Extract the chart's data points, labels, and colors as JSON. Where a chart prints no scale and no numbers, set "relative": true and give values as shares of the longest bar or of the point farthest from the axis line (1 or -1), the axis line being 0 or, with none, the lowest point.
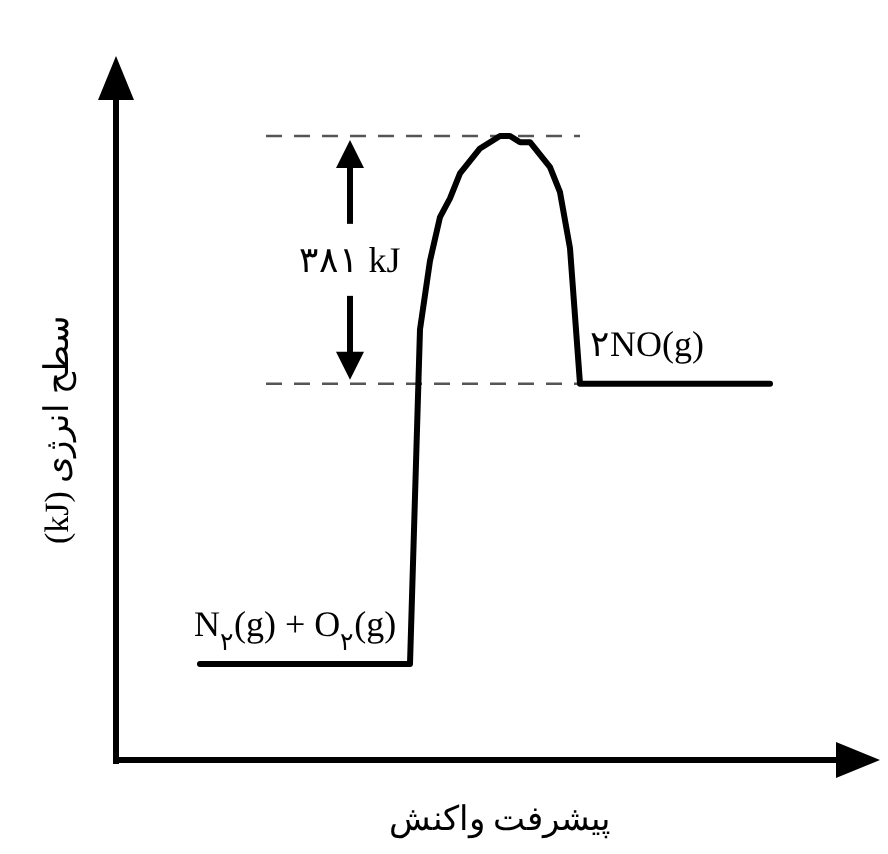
{
  "chart_data": {
    "type": "line",
    "relative": true,
    "xlabel": "پیشرفت واکنش",
    "ylabel": "سطح انرژی (kJ)",
    "categories": [
      null,
      null,
      null,
      null,
      null,
      null,
      null,
      null,
      null,
      null,
      null,
      null,
      null,
      null,
      null,
      null,
      null,
      null,
      null,
      null,
      null,
      null,
      null,
      null,
      null,
      null,
      null,
      null,
      null,
      null,
      null,
      null,
      null,
      null,
      null,
      null,
      null,
      null,
      null,
      null,
      null,
      null,
      null,
      null,
      null,
      null,
      null,
      null,
      null,
      null,
      null,
      null,
      null,
      null,
      null,
      null,
      null,
      null
    ],
    "series": [
      {
        "color": "#000000",
        "values": [
          0.154,
          0.154,
          0.154,
          0.154,
          0.154,
          0.154,
          0.154,
          0.154,
          0.154,
          0.154,
          0.154,
          0.154,
          0.154,
          0.154,
          0.154,
          0.154,
          0.154,
          0.154,
          0.154,
          0.154,
          0.154,
          0.154,
          0.69,
          0.8,
          0.87,
          0.9,
          0.94,
          0.96,
          0.98,
          0.99,
          1,
          1,
          0.99,
          0.99,
          0.97,
          0.95,
          0.91,
          0.82,
          0.603,
          0.603,
          0.603,
          0.603,
          0.603,
          0.603,
          0.603,
          0.603,
          0.603,
          0.603,
          0.603,
          0.603,
          0.603,
          0.603,
          0.603,
          0.603,
          0.603,
          0.603,
          0.603,
          0.603
        ]
      }
    ],
    "ref_lines": [
      {
        "axis": "y",
        "value": 0.603,
        "line_style": "dashed",
        "color": "#555555"
      },
      {
        "axis": "y",
        "value": 1,
        "line_style": "dashed",
        "color": "#555555"
      }
    ],
    "annotations": [
      "۳۸۱ kJ",
      {
        "text": "N$_{۲}$(g) + O$_{۲}$(g)",
        "y": 0.154
      },
      {
        "text": "۲NO(g)",
        "y": 0.603
      }
    ]
  }
}
